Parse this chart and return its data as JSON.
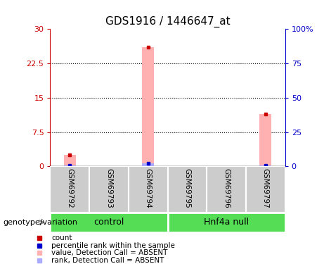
{
  "title": "GDS1916 / 1446647_at",
  "samples": [
    "GSM69792",
    "GSM69793",
    "GSM69794",
    "GSM69795",
    "GSM69796",
    "GSM69797"
  ],
  "group_labels": [
    "control",
    "Hnf4a null"
  ],
  "pink_bar_values": [
    2.5,
    0,
    26.0,
    0,
    0,
    11.5
  ],
  "blue_bar_values": [
    0.5,
    0,
    2.0,
    0,
    0,
    0.8
  ],
  "ylim_left": [
    0,
    30
  ],
  "ylim_right": [
    0,
    100
  ],
  "yticks_left": [
    0,
    7.5,
    15,
    22.5,
    30
  ],
  "yticks_right": [
    0,
    25,
    50,
    75,
    100
  ],
  "ytick_left_labels": [
    "0",
    "7.5",
    "15",
    "22.5",
    "30"
  ],
  "ytick_right_labels": [
    "0",
    "25",
    "50",
    "75",
    "100%"
  ],
  "left_axis_color": "#cc0000",
  "right_axis_color": "#0000cc",
  "pink_color": "#ffb0b0",
  "blue_bar_color": "#aaaaff",
  "bg_sample_box": "#cccccc",
  "bg_control": "#55dd55",
  "bg_hnf4a": "#55dd55",
  "legend_items": [
    {
      "color": "#cc0000",
      "label": "count"
    },
    {
      "color": "#0000cc",
      "label": "percentile rank within the sample"
    },
    {
      "color": "#ffb0b0",
      "label": "value, Detection Call = ABSENT"
    },
    {
      "color": "#aaaaff",
      "label": "rank, Detection Call = ABSENT"
    }
  ],
  "genotype_label": "genotype/variation"
}
